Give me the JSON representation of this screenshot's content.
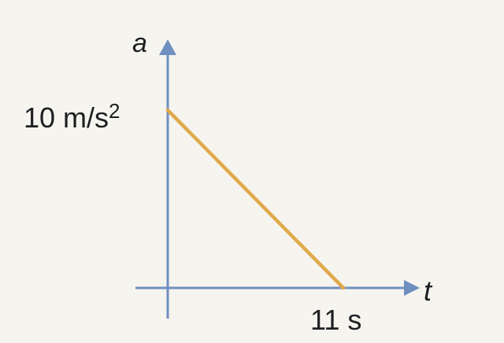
{
  "chart_data": {
    "type": "line",
    "xlabel": "t",
    "ylabel": "a",
    "x": [
      0,
      11
    ],
    "series": [
      {
        "values": [
          10,
          0
        ]
      }
    ],
    "xlim": [
      0,
      11
    ],
    "ylim": [
      0,
      10
    ],
    "tick_labels": {
      "y_value": "10 m/s",
      "y_superscript": "2",
      "x_value": "11 s"
    },
    "grid": false,
    "colors": {
      "axis": "#6f8fc0",
      "line": "#e0a94a",
      "text": "#1e1e22",
      "background": "#f6f4ef"
    }
  }
}
